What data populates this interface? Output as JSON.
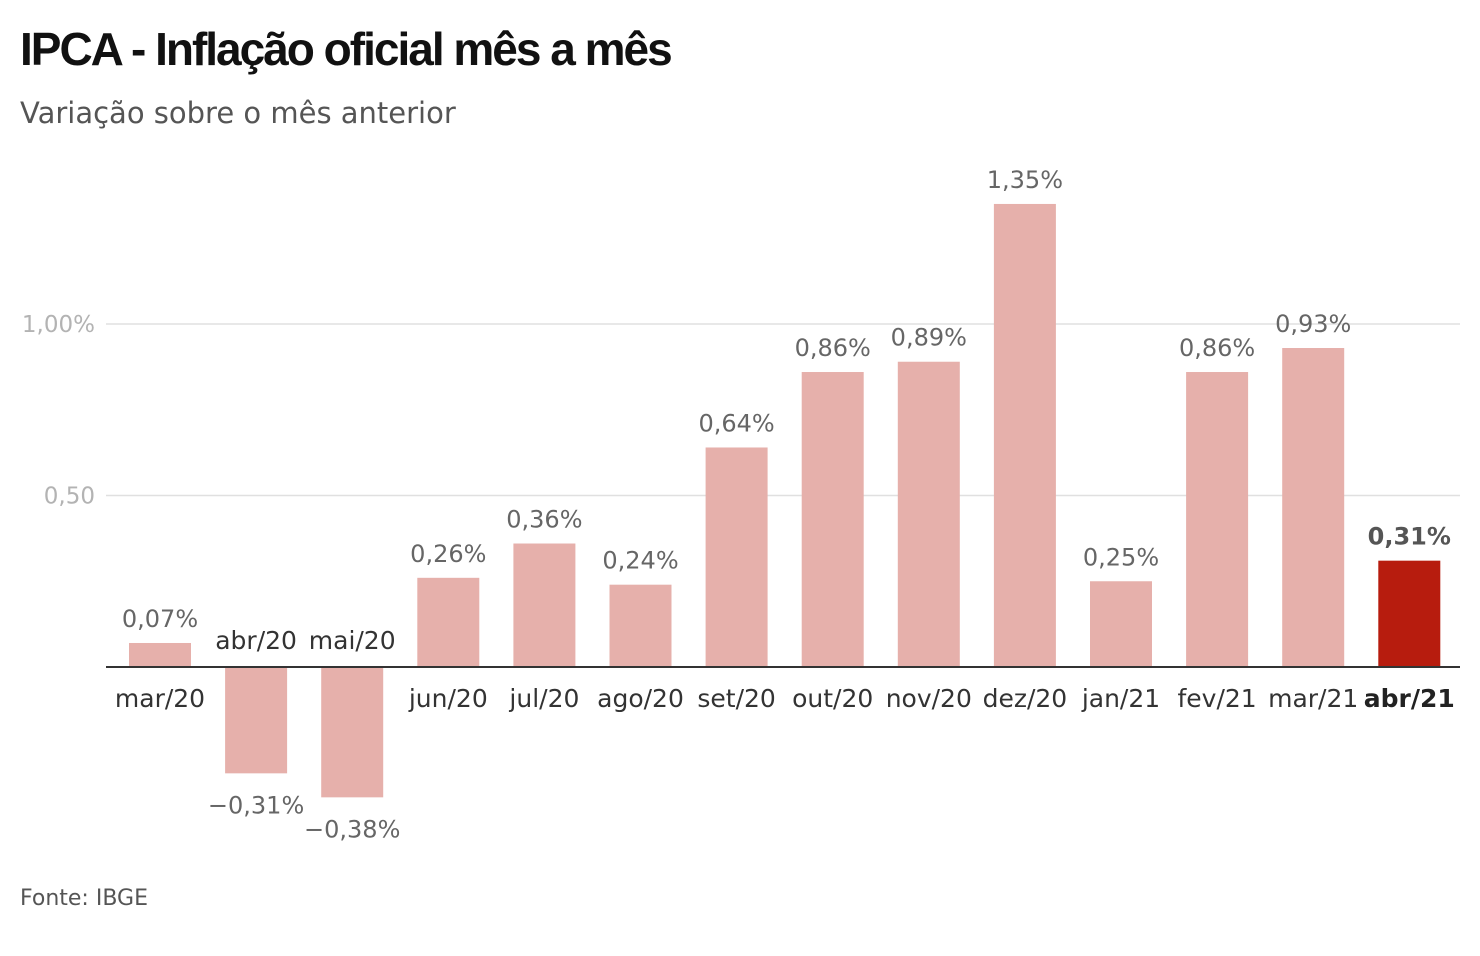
{
  "title": "IPCA - Inflação oficial mês a mês",
  "subtitle": "Variação sobre o mês anterior",
  "source": "Fonte: IBGE",
  "colors": {
    "bar": "#e6b0ab",
    "highlight": "#b71c0e",
    "grid": "#e0e0e0",
    "axis": "#333333"
  },
  "chart_data": {
    "type": "bar",
    "title": "IPCA - Inflação oficial mês a mês",
    "subtitle": "Variação sobre o mês anterior",
    "xlabel": "",
    "ylabel": "",
    "ylim": [
      -0.45,
      1.4
    ],
    "grid": true,
    "yticks": [
      {
        "value": 0.5,
        "label": "0,50"
      },
      {
        "value": 1.0,
        "label": "1,00%"
      }
    ],
    "categories": [
      "mar/20",
      "abr/20",
      "mai/20",
      "jun/20",
      "jul/20",
      "ago/20",
      "set/20",
      "out/20",
      "nov/20",
      "dez/20",
      "jan/21",
      "fev/21",
      "mar/21",
      "abr/21"
    ],
    "values": [
      0.07,
      -0.31,
      -0.38,
      0.26,
      0.36,
      0.24,
      0.64,
      0.86,
      0.89,
      1.35,
      0.25,
      0.86,
      0.93,
      0.31
    ],
    "value_labels": [
      "0,07%",
      "−0,31%",
      "−0,38%",
      "0,26%",
      "0,36%",
      "0,24%",
      "0,64%",
      "0,86%",
      "0,89%",
      "1,35%",
      "0,25%",
      "0,86%",
      "0,93%",
      "0,31%"
    ],
    "highlight_category": "abr/21"
  }
}
